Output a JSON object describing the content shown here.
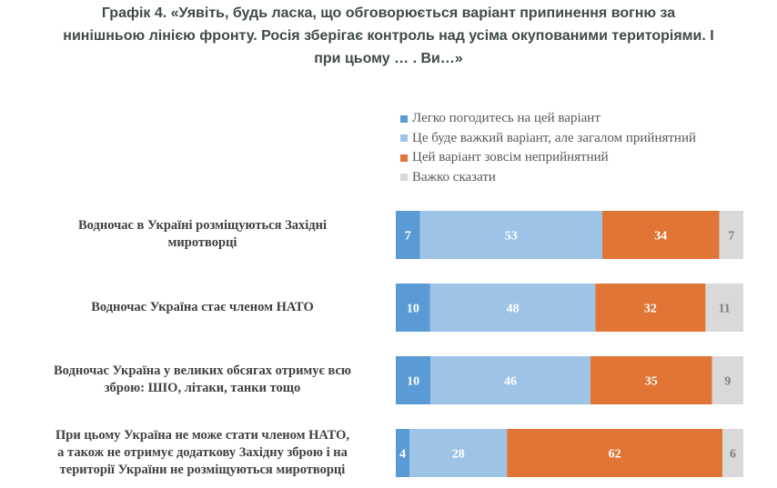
{
  "chart_data": {
    "type": "bar",
    "orientation": "horizontal",
    "stacked": true,
    "title": "Графік 4. «Уявіть, будь ласка, що обговорюється варіант припинення вогню за нинішньою лінією фронту. Росія зберігає контроль над усіма окупованими територіями. І при цьому … . Ви…»",
    "title_lines": [
      "Графік 4. «Уявіть, будь ласка, що обговорюється варіант припинення вогню за",
      "нинішньою лінією фронту. Росія зберігає контроль над усіма окупованими територіями. І",
      "при цьому … . Ви…»"
    ],
    "xlabel": "",
    "ylabel": "",
    "xlim": [
      0,
      100
    ],
    "grid": false,
    "legend_position": "top-right",
    "categories": [
      {
        "lines": [
          "Водночас в Україні розміщуються Західні",
          "миротворці"
        ]
      },
      {
        "lines": [
          "Водночас Україна стає членом НАТО"
        ]
      },
      {
        "lines": [
          "Водночас Україна у великих обсягах отримує всю",
          "зброю: ШІО, літаки, танки тощо"
        ]
      },
      {
        "lines": [
          "При цьому Україна не може стати членом НАТО,",
          "а також не отримує додаткову Західну зброю і на",
          "території України не розміщуються миротворці"
        ]
      }
    ],
    "series": [
      {
        "name": "Легко погодитесь на цей варіант",
        "color": "#5b9bd5",
        "label_color": "#ffffff",
        "values": [
          7,
          10,
          10,
          4
        ]
      },
      {
        "name": "Це буде важкий варіант, але загалом прийнятний",
        "color": "#9dc3e6",
        "label_color": "#ffffff",
        "values": [
          53,
          48,
          46,
          28
        ]
      },
      {
        "name": "Цей варіант зовсім неприйнятний",
        "color": "#e07535",
        "label_color": "#ffffff",
        "values": [
          34,
          32,
          35,
          62
        ]
      },
      {
        "name": "Важко сказати",
        "color": "#d9d9d9",
        "label_color": "#7f7f7f",
        "values": [
          7,
          11,
          9,
          6
        ]
      }
    ]
  }
}
